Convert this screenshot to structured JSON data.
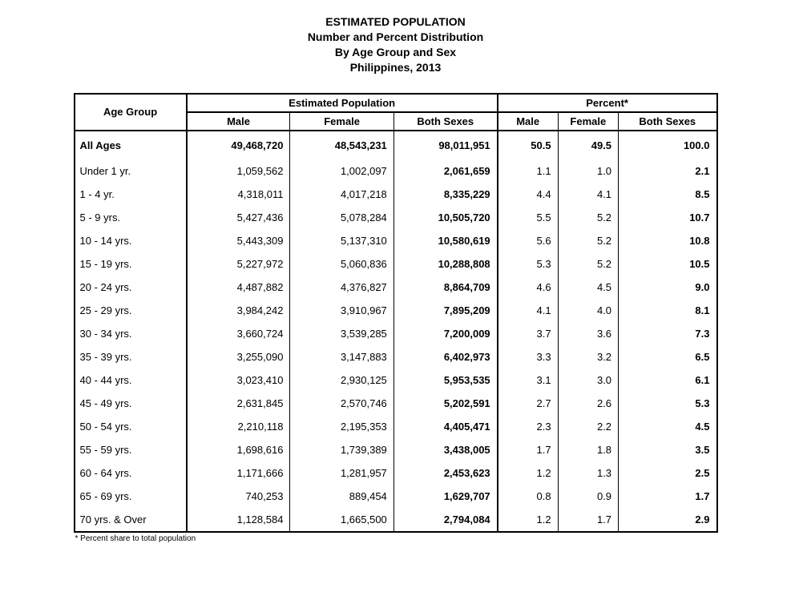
{
  "title": {
    "line1": "ESTIMATED  POPULATION",
    "line2": "Number and Percent Distribution",
    "line3": "By Age Group and Sex",
    "line4": "Philippines, 2013"
  },
  "headers": {
    "age_group": "Age Group",
    "est_pop": "Estimated Population",
    "percent": "Percent*",
    "male": "Male",
    "female": "Female",
    "both": "Both Sexes"
  },
  "totals": {
    "label": "All Ages",
    "male_n": "49,468,720",
    "female_n": "48,543,231",
    "both_n": "98,011,951",
    "male_p": "50.5",
    "female_p": "49.5",
    "both_p": "100.0"
  },
  "rows": [
    {
      "label": "Under 1 yr.",
      "male_n": "1,059,562",
      "female_n": "1,002,097",
      "both_n": "2,061,659",
      "male_p": "1.1",
      "female_p": "1.0",
      "both_p": "2.1"
    },
    {
      "label": "1 - 4 yr.",
      "male_n": "4,318,011",
      "female_n": "4,017,218",
      "both_n": "8,335,229",
      "male_p": "4.4",
      "female_p": "4.1",
      "both_p": "8.5"
    },
    {
      "label": "5 - 9 yrs.",
      "male_n": "5,427,436",
      "female_n": "5,078,284",
      "both_n": "10,505,720",
      "male_p": "5.5",
      "female_p": "5.2",
      "both_p": "10.7"
    },
    {
      "label": "10 - 14 yrs.",
      "male_n": "5,443,309",
      "female_n": "5,137,310",
      "both_n": "10,580,619",
      "male_p": "5.6",
      "female_p": "5.2",
      "both_p": "10.8"
    },
    {
      "label": "15 - 19 yrs.",
      "male_n": "5,227,972",
      "female_n": "5,060,836",
      "both_n": "10,288,808",
      "male_p": "5.3",
      "female_p": "5.2",
      "both_p": "10.5"
    },
    {
      "label": "20 - 24 yrs.",
      "male_n": "4,487,882",
      "female_n": "4,376,827",
      "both_n": "8,864,709",
      "male_p": "4.6",
      "female_p": "4.5",
      "both_p": "9.0"
    },
    {
      "label": "25 - 29 yrs.",
      "male_n": "3,984,242",
      "female_n": "3,910,967",
      "both_n": "7,895,209",
      "male_p": "4.1",
      "female_p": "4.0",
      "both_p": "8.1"
    },
    {
      "label": "30 - 34 yrs.",
      "male_n": "3,660,724",
      "female_n": "3,539,285",
      "both_n": "7,200,009",
      "male_p": "3.7",
      "female_p": "3.6",
      "both_p": "7.3"
    },
    {
      "label": "35 - 39 yrs.",
      "male_n": "3,255,090",
      "female_n": "3,147,883",
      "both_n": "6,402,973",
      "male_p": "3.3",
      "female_p": "3.2",
      "both_p": "6.5"
    },
    {
      "label": "40 - 44 yrs.",
      "male_n": "3,023,410",
      "female_n": "2,930,125",
      "both_n": "5,953,535",
      "male_p": "3.1",
      "female_p": "3.0",
      "both_p": "6.1"
    },
    {
      "label": "45 - 49 yrs.",
      "male_n": "2,631,845",
      "female_n": "2,570,746",
      "both_n": "5,202,591",
      "male_p": "2.7",
      "female_p": "2.6",
      "both_p": "5.3"
    },
    {
      "label": "50 - 54 yrs.",
      "male_n": "2,210,118",
      "female_n": "2,195,353",
      "both_n": "4,405,471",
      "male_p": "2.3",
      "female_p": "2.2",
      "both_p": "4.5"
    },
    {
      "label": "55 - 59 yrs.",
      "male_n": "1,698,616",
      "female_n": "1,739,389",
      "both_n": "3,438,005",
      "male_p": "1.7",
      "female_p": "1.8",
      "both_p": "3.5"
    },
    {
      "label": "60 - 64 yrs.",
      "male_n": "1,171,666",
      "female_n": "1,281,957",
      "both_n": "2,453,623",
      "male_p": "1.2",
      "female_p": "1.3",
      "both_p": "2.5"
    },
    {
      "label": "65 - 69 yrs.",
      "male_n": "740,253",
      "female_n": "889,454",
      "both_n": "1,629,707",
      "male_p": "0.8",
      "female_p": "0.9",
      "both_p": "1.7"
    },
    {
      "label": "70 yrs. & Over",
      "male_n": "1,128,584",
      "female_n": "1,665,500",
      "both_n": "2,794,084",
      "male_p": "1.2",
      "female_p": "1.7",
      "both_p": "2.9"
    }
  ],
  "footnote": "* Percent share to total population",
  "style": {
    "border_color": "#000000",
    "background_color": "#ffffff",
    "title_fontsize_pt": 14,
    "header_fontsize_pt": 13,
    "body_fontsize_pt": 13,
    "footnote_fontsize_pt": 10,
    "font_family": "Arial"
  }
}
